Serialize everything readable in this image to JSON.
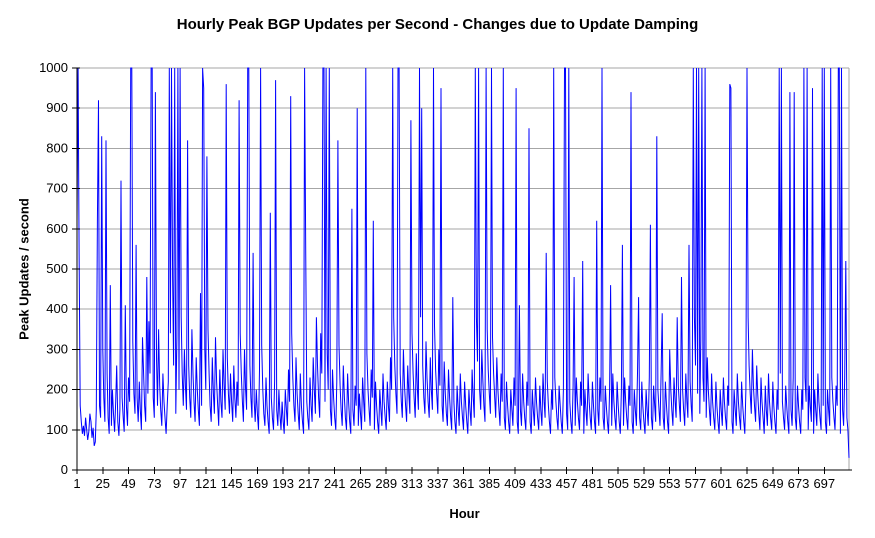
{
  "page": {
    "background": "#FFFFFF"
  },
  "chart_data": {
    "type": "line",
    "title": "Hourly Peak BGP Updates per Second - Changes due to Update Damping",
    "xlabel": "Hour",
    "ylabel": "Peak Updates / second",
    "ylim": [
      0,
      1000
    ],
    "y_ticks": [
      0,
      100,
      200,
      300,
      400,
      500,
      600,
      700,
      800,
      900,
      1000
    ],
    "x_tick_labels": [
      1,
      25,
      49,
      73,
      97,
      121,
      145,
      169,
      193,
      217,
      241,
      265,
      289,
      313,
      337,
      361,
      385,
      409,
      433,
      457,
      481,
      505,
      529,
      553,
      577,
      601,
      625,
      649,
      673,
      697
    ],
    "x_tick_interval": 24,
    "x_start_hour": 1,
    "hours_total": 720,
    "grid": "horizontal-only",
    "legend": "none",
    "line_color": "#0000FF",
    "grid_color": "#A6A6A6",
    "axis_color": "#000000",
    "values_note": "hourly peak updates per second, spikes clipped at 1000 (approximated from pixels)",
    "series": [
      {
        "name": "Peak Updates / second",
        "values": [
          620,
          1000,
          540,
          160,
          120,
          90,
          110,
          85,
          130,
          100,
          75,
          95,
          140,
          120,
          80,
          105,
          60,
          70,
          150,
          620,
          920,
          160,
          130,
          830,
          300,
          180,
          120,
          820,
          240,
          130,
          90,
          460,
          110,
          200,
          140,
          95,
          170,
          260,
          120,
          85,
          150,
          720,
          180,
          130,
          95,
          410,
          160,
          110,
          230,
          170,
          1000,
          1000,
          320,
          190,
          140,
          560,
          180,
          120,
          220,
          150,
          100,
          330,
          240,
          160,
          120,
          480,
          190,
          370,
          240,
          1000,
          1000,
          180,
          130,
          940,
          280,
          160,
          350,
          210,
          150,
          110,
          240,
          170,
          130,
          90,
          160,
          220,
          1000,
          340,
          1000,
          480,
          260,
          1000,
          140,
          330,
          1000,
          200,
          1000,
          380,
          240,
          160,
          300,
          210,
          150,
          820,
          260,
          180,
          130,
          350,
          240,
          170,
          120,
          280,
          200,
          150,
          110,
          440,
          160,
          1000,
          950,
          300,
          200,
          780,
          350,
          240,
          160,
          120,
          280,
          190,
          140,
          330,
          220,
          160,
          110,
          250,
          170,
          130,
          300,
          210,
          150,
          960,
          280,
          190,
          140,
          240,
          170,
          120,
          260,
          180,
          130,
          220,
          160,
          920,
          340,
          240,
          170,
          120,
          300,
          200,
          150,
          1000,
          1000,
          260,
          180,
          130,
          540,
          170,
          120,
          200,
          140,
          100,
          250,
          1000,
          310,
          200,
          140,
          110,
          230,
          160,
          120,
          90,
          640,
          180,
          130,
          100,
          220,
          970,
          150,
          110,
          200,
          140,
          100,
          170,
          120,
          90,
          200,
          150,
          110,
          250,
          170,
          930,
          340,
          230,
          160,
          120,
          280,
          190,
          140,
          100,
          240,
          160,
          120,
          90,
          1000,
          550,
          170,
          130,
          100,
          230,
          160,
          120,
          280,
          200,
          140,
          380,
          260,
          180,
          130,
          340,
          240,
          1000,
          1000,
          170,
          1000,
          290,
          200,
          1000,
          150,
          110,
          250,
          180,
          130,
          100,
          220,
          820,
          310,
          210,
          150,
          110,
          260,
          180,
          130,
          100,
          240,
          170,
          120,
          90,
          650,
          150,
          110,
          210,
          160,
          900,
          110,
          190,
          140,
          100,
          230,
          170,
          120,
          1000,
          290,
          200,
          150,
          110,
          250,
          180,
          620,
          100,
          220,
          160,
          120,
          90,
          200,
          150,
          110,
          240,
          170,
          130,
          100,
          220,
          160,
          120,
          280,
          200,
          1000,
          380,
          260,
          190,
          140,
          1000,
          1000,
          240,
          170,
          130,
          300,
          210,
          160,
          120,
          260,
          190,
          140,
          870,
          340,
          240,
          180,
          130,
          290,
          200,
          150,
          1000,
          380,
          900,
          260,
          180,
          140,
          320,
          230,
          170,
          130,
          280,
          200,
          150,
          1000,
          360,
          250,
          190,
          140,
          300,
          210,
          950,
          160,
          120,
          270,
          190,
          140,
          110,
          250,
          180,
          130,
          100,
          430,
          170,
          120,
          90,
          210,
          150,
          110,
          240,
          170,
          130,
          100,
          220,
          160,
          120,
          90,
          200,
          150,
          110,
          250,
          180,
          130,
          1000,
          380,
          270,
          1000,
          200,
          150,
          300,
          220,
          160,
          120,
          1000,
          350,
          250,
          190,
          140,
          1000,
          330,
          240,
          180,
          130,
          280,
          200,
          150,
          110,
          240,
          170,
          1000,
          130,
          100,
          220,
          160,
          120,
          90,
          200,
          150,
          110,
          230,
          160,
          950,
          120,
          90,
          410,
          150,
          110,
          240,
          170,
          130,
          100,
          220,
          160,
          850,
          120,
          90,
          200,
          150,
          110,
          230,
          170,
          130,
          100,
          210,
          150,
          110,
          240,
          170,
          130,
          540,
          220,
          160,
          120,
          90,
          200,
          150,
          1000,
          230,
          170,
          130,
          100,
          210,
          160,
          120,
          90,
          200,
          1000,
          1000,
          140,
          100,
          1000,
          170,
          120,
          90,
          210,
          480,
          110,
          230,
          170,
          130,
          100,
          220,
          160,
          520,
          90,
          200,
          150,
          110,
          240,
          170,
          130,
          100,
          220,
          160,
          120,
          90,
          620,
          150,
          110,
          230,
          170,
          1000,
          130,
          100,
          210,
          160,
          120,
          90,
          200,
          460,
          110,
          240,
          170,
          130,
          100,
          220,
          160,
          120,
          90,
          200,
          560,
          110,
          230,
          170,
          130,
          100,
          210,
          160,
          940,
          120,
          90,
          200,
          150,
          110,
          240,
          430,
          130,
          100,
          220,
          160,
          120,
          90,
          200,
          150,
          110,
          230,
          610,
          130,
          100,
          210,
          160,
          120,
          830,
          200,
          150,
          110,
          240,
          390,
          130,
          100,
          220,
          160,
          120,
          90,
          300,
          200,
          150,
          110,
          230,
          170,
          130,
          380,
          210,
          160,
          120,
          480,
          200,
          150,
          110,
          240,
          170,
          130,
          560,
          220,
          160,
          120,
          1000,
          380,
          260,
          1000,
          190,
          1000,
          140,
          320,
          1000,
          230,
          170,
          1000,
          130,
          280,
          200,
          150,
          110,
          240,
          170,
          130,
          100,
          220,
          160,
          120,
          90,
          200,
          150,
          110,
          230,
          170,
          130,
          100,
          210,
          160,
          960,
          950,
          120,
          90,
          200,
          150,
          110,
          240,
          170,
          130,
          100,
          220,
          160,
          120,
          90,
          200,
          1000,
          380,
          260,
          190,
          140,
          300,
          210,
          160,
          120,
          260,
          190,
          140,
          100,
          230,
          170,
          130,
          90,
          210,
          150,
          110,
          240,
          170,
          130,
          100,
          220,
          160,
          120,
          90,
          200,
          150,
          1000,
          240,
          1000,
          170,
          130,
          100,
          210,
          160,
          120,
          90,
          940,
          150,
          110,
          230,
          940,
          130,
          100,
          210,
          160,
          120,
          90,
          200,
          150,
          1000,
          230,
          170,
          1000,
          100,
          210,
          160,
          120,
          950,
          90,
          200,
          150,
          110,
          240,
          170,
          130,
          100,
          1000,
          160,
          1000,
          120,
          90,
          200,
          150,
          110,
          1000,
          230,
          170,
          130,
          100,
          210,
          160,
          1000,
          1000,
          90,
          1000,
          150,
          110,
          230,
          520,
          130,
          100,
          30
        ]
      }
    ]
  }
}
